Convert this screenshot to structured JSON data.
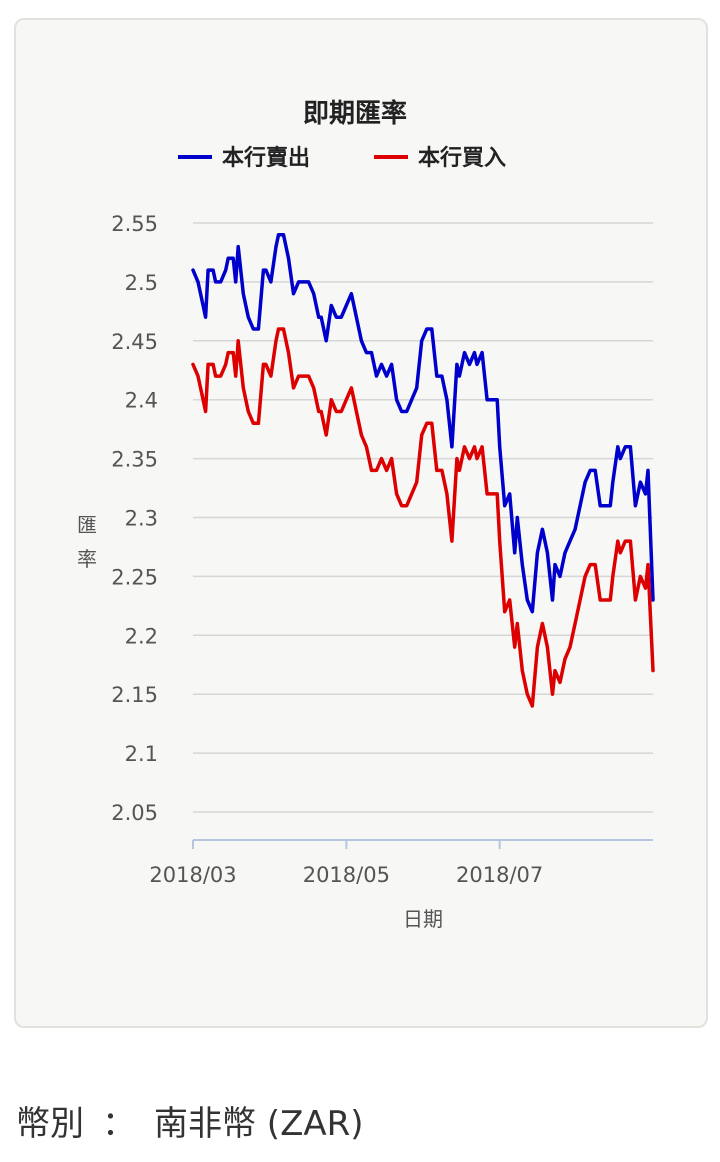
{
  "colors": {
    "sell": "#0000cc",
    "buy": "#dd0000",
    "grid": "#d6d6d6",
    "axis": "#b5c7e0",
    "text": "#555555",
    "title": "#222222"
  },
  "chart_data": {
    "type": "line",
    "title": "即期匯率",
    "xlabel": "日期",
    "ylabel": "匯率",
    "ylim": [
      2.05,
      2.55
    ],
    "yticks": [
      "2.55",
      "2.5",
      "2.45",
      "2.4",
      "2.35",
      "2.3",
      "2.25",
      "2.2",
      "2.15",
      "2.1",
      "2.05"
    ],
    "xticks": [
      "2018/03",
      "2018/05",
      "2018/07"
    ],
    "xrange": [
      "2018-03-01",
      "2018-08-31"
    ],
    "legend_position": "top",
    "series": [
      {
        "name": "本行賣出",
        "color": "#0000cc",
        "values": [
          [
            "2018-03-01",
            2.51
          ],
          [
            "2018-03-03",
            2.5
          ],
          [
            "2018-03-05",
            2.48
          ],
          [
            "2018-03-06",
            2.47
          ],
          [
            "2018-03-07",
            2.51
          ],
          [
            "2018-03-09",
            2.51
          ],
          [
            "2018-03-10",
            2.5
          ],
          [
            "2018-03-12",
            2.5
          ],
          [
            "2018-03-14",
            2.51
          ],
          [
            "2018-03-15",
            2.52
          ],
          [
            "2018-03-17",
            2.52
          ],
          [
            "2018-03-18",
            2.5
          ],
          [
            "2018-03-19",
            2.53
          ],
          [
            "2018-03-21",
            2.49
          ],
          [
            "2018-03-23",
            2.47
          ],
          [
            "2018-03-25",
            2.46
          ],
          [
            "2018-03-27",
            2.46
          ],
          [
            "2018-03-29",
            2.51
          ],
          [
            "2018-03-30",
            2.51
          ],
          [
            "2018-04-01",
            2.5
          ],
          [
            "2018-04-03",
            2.53
          ],
          [
            "2018-04-04",
            2.54
          ],
          [
            "2018-04-06",
            2.54
          ],
          [
            "2018-04-08",
            2.52
          ],
          [
            "2018-04-10",
            2.49
          ],
          [
            "2018-04-12",
            2.5
          ],
          [
            "2018-04-14",
            2.5
          ],
          [
            "2018-04-16",
            2.5
          ],
          [
            "2018-04-18",
            2.49
          ],
          [
            "2018-04-20",
            2.47
          ],
          [
            "2018-04-21",
            2.47
          ],
          [
            "2018-04-23",
            2.45
          ],
          [
            "2018-04-25",
            2.48
          ],
          [
            "2018-04-27",
            2.47
          ],
          [
            "2018-04-29",
            2.47
          ],
          [
            "2018-05-01",
            2.48
          ],
          [
            "2018-05-03",
            2.49
          ],
          [
            "2018-05-05",
            2.47
          ],
          [
            "2018-05-07",
            2.45
          ],
          [
            "2018-05-09",
            2.44
          ],
          [
            "2018-05-11",
            2.44
          ],
          [
            "2018-05-13",
            2.42
          ],
          [
            "2018-05-15",
            2.43
          ],
          [
            "2018-05-17",
            2.42
          ],
          [
            "2018-05-19",
            2.43
          ],
          [
            "2018-05-21",
            2.4
          ],
          [
            "2018-05-23",
            2.39
          ],
          [
            "2018-05-25",
            2.39
          ],
          [
            "2018-05-27",
            2.4
          ],
          [
            "2018-05-29",
            2.41
          ],
          [
            "2018-05-31",
            2.45
          ],
          [
            "2018-06-02",
            2.46
          ],
          [
            "2018-06-04",
            2.46
          ],
          [
            "2018-06-06",
            2.42
          ],
          [
            "2018-06-08",
            2.42
          ],
          [
            "2018-06-10",
            2.4
          ],
          [
            "2018-06-12",
            2.36
          ],
          [
            "2018-06-14",
            2.43
          ],
          [
            "2018-06-15",
            2.42
          ],
          [
            "2018-06-17",
            2.44
          ],
          [
            "2018-06-19",
            2.43
          ],
          [
            "2018-06-21",
            2.44
          ],
          [
            "2018-06-22",
            2.43
          ],
          [
            "2018-06-24",
            2.44
          ],
          [
            "2018-06-26",
            2.4
          ],
          [
            "2018-06-28",
            2.4
          ],
          [
            "2018-06-30",
            2.4
          ],
          [
            "2018-07-01",
            2.36
          ],
          [
            "2018-07-03",
            2.31
          ],
          [
            "2018-07-05",
            2.32
          ],
          [
            "2018-07-07",
            2.27
          ],
          [
            "2018-07-08",
            2.3
          ],
          [
            "2018-07-10",
            2.26
          ],
          [
            "2018-07-12",
            2.23
          ],
          [
            "2018-07-14",
            2.22
          ],
          [
            "2018-07-16",
            2.27
          ],
          [
            "2018-07-18",
            2.29
          ],
          [
            "2018-07-20",
            2.27
          ],
          [
            "2018-07-22",
            2.23
          ],
          [
            "2018-07-23",
            2.26
          ],
          [
            "2018-07-25",
            2.25
          ],
          [
            "2018-07-27",
            2.27
          ],
          [
            "2018-07-29",
            2.28
          ],
          [
            "2018-07-31",
            2.29
          ],
          [
            "2018-08-02",
            2.31
          ],
          [
            "2018-08-04",
            2.33
          ],
          [
            "2018-08-06",
            2.34
          ],
          [
            "2018-08-08",
            2.34
          ],
          [
            "2018-08-10",
            2.31
          ],
          [
            "2018-08-12",
            2.31
          ],
          [
            "2018-08-14",
            2.31
          ],
          [
            "2018-08-15",
            2.33
          ],
          [
            "2018-08-17",
            2.36
          ],
          [
            "2018-08-18",
            2.35
          ],
          [
            "2018-08-20",
            2.36
          ],
          [
            "2018-08-22",
            2.36
          ],
          [
            "2018-08-24",
            2.31
          ],
          [
            "2018-08-26",
            2.33
          ],
          [
            "2018-08-28",
            2.32
          ],
          [
            "2018-08-29",
            2.34
          ],
          [
            "2018-08-31",
            2.23
          ]
        ]
      },
      {
        "name": "本行買入",
        "color": "#dd0000",
        "values": [
          [
            "2018-03-01",
            2.43
          ],
          [
            "2018-03-03",
            2.42
          ],
          [
            "2018-03-05",
            2.4
          ],
          [
            "2018-03-06",
            2.39
          ],
          [
            "2018-03-07",
            2.43
          ],
          [
            "2018-03-09",
            2.43
          ],
          [
            "2018-03-10",
            2.42
          ],
          [
            "2018-03-12",
            2.42
          ],
          [
            "2018-03-14",
            2.43
          ],
          [
            "2018-03-15",
            2.44
          ],
          [
            "2018-03-17",
            2.44
          ],
          [
            "2018-03-18",
            2.42
          ],
          [
            "2018-03-19",
            2.45
          ],
          [
            "2018-03-21",
            2.41
          ],
          [
            "2018-03-23",
            2.39
          ],
          [
            "2018-03-25",
            2.38
          ],
          [
            "2018-03-27",
            2.38
          ],
          [
            "2018-03-29",
            2.43
          ],
          [
            "2018-03-30",
            2.43
          ],
          [
            "2018-04-01",
            2.42
          ],
          [
            "2018-04-03",
            2.45
          ],
          [
            "2018-04-04",
            2.46
          ],
          [
            "2018-04-06",
            2.46
          ],
          [
            "2018-04-08",
            2.44
          ],
          [
            "2018-04-10",
            2.41
          ],
          [
            "2018-04-12",
            2.42
          ],
          [
            "2018-04-14",
            2.42
          ],
          [
            "2018-04-16",
            2.42
          ],
          [
            "2018-04-18",
            2.41
          ],
          [
            "2018-04-20",
            2.39
          ],
          [
            "2018-04-21",
            2.39
          ],
          [
            "2018-04-23",
            2.37
          ],
          [
            "2018-04-25",
            2.4
          ],
          [
            "2018-04-27",
            2.39
          ],
          [
            "2018-04-29",
            2.39
          ],
          [
            "2018-05-01",
            2.4
          ],
          [
            "2018-05-03",
            2.41
          ],
          [
            "2018-05-05",
            2.39
          ],
          [
            "2018-05-07",
            2.37
          ],
          [
            "2018-05-09",
            2.36
          ],
          [
            "2018-05-11",
            2.34
          ],
          [
            "2018-05-13",
            2.34
          ],
          [
            "2018-05-15",
            2.35
          ],
          [
            "2018-05-17",
            2.34
          ],
          [
            "2018-05-19",
            2.35
          ],
          [
            "2018-05-21",
            2.32
          ],
          [
            "2018-05-23",
            2.31
          ],
          [
            "2018-05-25",
            2.31
          ],
          [
            "2018-05-27",
            2.32
          ],
          [
            "2018-05-29",
            2.33
          ],
          [
            "2018-05-31",
            2.37
          ],
          [
            "2018-06-02",
            2.38
          ],
          [
            "2018-06-04",
            2.38
          ],
          [
            "2018-06-06",
            2.34
          ],
          [
            "2018-06-08",
            2.34
          ],
          [
            "2018-06-10",
            2.32
          ],
          [
            "2018-06-12",
            2.28
          ],
          [
            "2018-06-14",
            2.35
          ],
          [
            "2018-06-15",
            2.34
          ],
          [
            "2018-06-17",
            2.36
          ],
          [
            "2018-06-19",
            2.35
          ],
          [
            "2018-06-21",
            2.36
          ],
          [
            "2018-06-22",
            2.35
          ],
          [
            "2018-06-24",
            2.36
          ],
          [
            "2018-06-26",
            2.32
          ],
          [
            "2018-06-28",
            2.32
          ],
          [
            "2018-06-30",
            2.32
          ],
          [
            "2018-07-01",
            2.28
          ],
          [
            "2018-07-03",
            2.22
          ],
          [
            "2018-07-05",
            2.23
          ],
          [
            "2018-07-07",
            2.19
          ],
          [
            "2018-07-08",
            2.21
          ],
          [
            "2018-07-10",
            2.17
          ],
          [
            "2018-07-12",
            2.15
          ],
          [
            "2018-07-14",
            2.14
          ],
          [
            "2018-07-16",
            2.19
          ],
          [
            "2018-07-18",
            2.21
          ],
          [
            "2018-07-20",
            2.19
          ],
          [
            "2018-07-22",
            2.15
          ],
          [
            "2018-07-23",
            2.17
          ],
          [
            "2018-07-25",
            2.16
          ],
          [
            "2018-07-27",
            2.18
          ],
          [
            "2018-07-29",
            2.19
          ],
          [
            "2018-07-31",
            2.21
          ],
          [
            "2018-08-02",
            2.23
          ],
          [
            "2018-08-04",
            2.25
          ],
          [
            "2018-08-06",
            2.26
          ],
          [
            "2018-08-08",
            2.26
          ],
          [
            "2018-08-10",
            2.23
          ],
          [
            "2018-08-12",
            2.23
          ],
          [
            "2018-08-14",
            2.23
          ],
          [
            "2018-08-15",
            2.25
          ],
          [
            "2018-08-17",
            2.28
          ],
          [
            "2018-08-18",
            2.27
          ],
          [
            "2018-08-20",
            2.28
          ],
          [
            "2018-08-22",
            2.28
          ],
          [
            "2018-08-24",
            2.23
          ],
          [
            "2018-08-26",
            2.25
          ],
          [
            "2018-08-28",
            2.24
          ],
          [
            "2018-08-29",
            2.26
          ],
          [
            "2018-08-31",
            2.17
          ]
        ]
      }
    ]
  },
  "currency": {
    "label": "幣別",
    "separator": "：",
    "value": "南非幣 (ZAR)"
  }
}
